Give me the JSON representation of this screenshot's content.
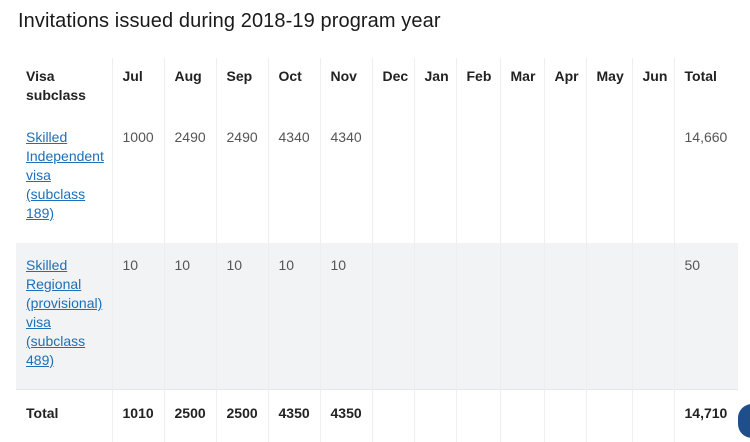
{
  "title": "Invitations issued during 2018-19 program year",
  "table": {
    "headers": [
      "Visa subclass",
      "Jul",
      "Aug",
      "Sep",
      "Oct",
      "Nov",
      "Dec",
      "Jan",
      "Feb",
      "Mar",
      "Apr",
      "May",
      "Jun",
      "Total"
    ],
    "rows": [
      {
        "label": "Skilled Independent visa (subclass 189)",
        "cells": [
          "1000",
          "2490",
          "2490",
          "4340",
          "4340",
          "",
          "",
          "",
          "",
          "",
          "",
          ""
        ],
        "total": "14,660"
      },
      {
        "label": "Skilled Regional (provisional) visa (subclass 489)",
        "cells": [
          "10",
          "10",
          "10",
          "10",
          "10",
          "",
          "",
          "",
          "",
          "",
          "",
          ""
        ],
        "total": "50"
      }
    ],
    "footer": {
      "label": "Total",
      "cells": [
        "1010",
        "2500",
        "2500",
        "4350",
        "4350",
        "",
        "",
        "",
        "",
        "",
        "",
        ""
      ],
      "total": "14,710"
    }
  },
  "colors": {
    "link": "#1c6fb8",
    "row_shade": "#f2f3f4"
  }
}
